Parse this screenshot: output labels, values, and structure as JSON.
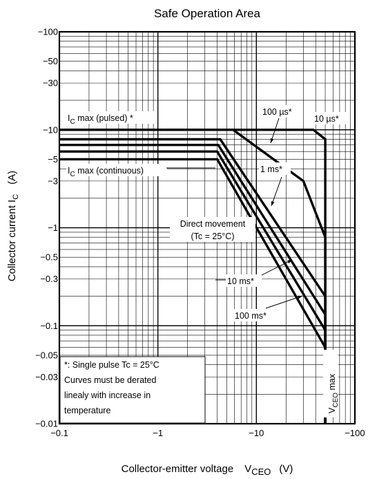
{
  "chart_data": {
    "type": "line",
    "title": "Safe Operation Area",
    "xlabel": "Collector-emitter voltage",
    "xlabel_symbol": "V",
    "xlabel_sub": "CEO",
    "xlabel_unit": "(V)",
    "ylabel": "Collector current I",
    "ylabel_sub": "C",
    "ylabel_unit": "(A)",
    "x_scale": "log",
    "y_scale": "log",
    "xlim": [
      0.1,
      100
    ],
    "ylim": [
      0.01,
      100
    ],
    "x_ticks": [
      {
        "value": 0.1,
        "label": "−0.1"
      },
      {
        "value": 1,
        "label": "−1"
      },
      {
        "value": 10,
        "label": "−10"
      },
      {
        "value": 100,
        "label": "−100"
      }
    ],
    "y_ticks": [
      {
        "value": 100,
        "label": "−100"
      },
      {
        "value": 50,
        "label": "−50"
      },
      {
        "value": 30,
        "label": "−30"
      },
      {
        "value": 10,
        "label": "−10"
      },
      {
        "value": 5,
        "label": "−5"
      },
      {
        "value": 3,
        "label": "−3"
      },
      {
        "value": 1,
        "label": "−1"
      },
      {
        "value": 0.5,
        "label": "−0.5"
      },
      {
        "value": 0.3,
        "label": "−0.3"
      },
      {
        "value": 0.1,
        "label": "−0.1"
      },
      {
        "value": 0.05,
        "label": "−0.05"
      },
      {
        "value": 0.03,
        "label": "−0.03"
      },
      {
        "value": 0.01,
        "label": "−0.01"
      }
    ],
    "grid": true,
    "series": [
      {
        "name": "10 µs*",
        "x": [
          0.1,
          38,
          50,
          50
        ],
        "y": [
          10,
          10,
          8,
          0.01
        ]
      },
      {
        "name": "100 µs*",
        "x": [
          0.1,
          5.8,
          30,
          50,
          50
        ],
        "y": [
          10,
          10,
          3,
          0.8,
          0.01
        ]
      },
      {
        "name": "1 ms*",
        "x": [
          0.1,
          4.3,
          50,
          50
        ],
        "y": [
          8,
          8,
          0.2,
          0.01
        ]
      },
      {
        "name": "10 ms*",
        "x": [
          0.1,
          4.1,
          50,
          50
        ],
        "y": [
          7,
          7,
          0.13,
          0.01
        ]
      },
      {
        "name": "100 ms*",
        "x": [
          0.1,
          4.0,
          50,
          50
        ],
        "y": [
          6,
          6,
          0.09,
          0.01
        ]
      },
      {
        "name": "Direct movement",
        "x": [
          0.1,
          4.0,
          50,
          50
        ],
        "y": [
          5,
          5,
          0.06,
          0.01
        ]
      }
    ],
    "annotations": {
      "ic_pulsed": {
        "label": "I",
        "sub": "C",
        "rest": " max (pulsed) *"
      },
      "ic_continuous": {
        "label": "I",
        "sub": "C",
        "rest": " max (continuous)"
      },
      "dc_line1": "Direct movement",
      "dc_line2": "(Tc = 25°C)",
      "us100": "100 µs*",
      "us10": "10 µs*",
      "ms1": "1 ms*",
      "ms10": "10 ms*",
      "ms100": "100 ms*",
      "vceo": {
        "label": "V",
        "sub": "CEO",
        "rest": " max"
      }
    },
    "note": [
      "*: Single pulse    Tc = 25°C",
      "Curves must be derated",
      "linealy with increase in",
      "temperature"
    ]
  }
}
